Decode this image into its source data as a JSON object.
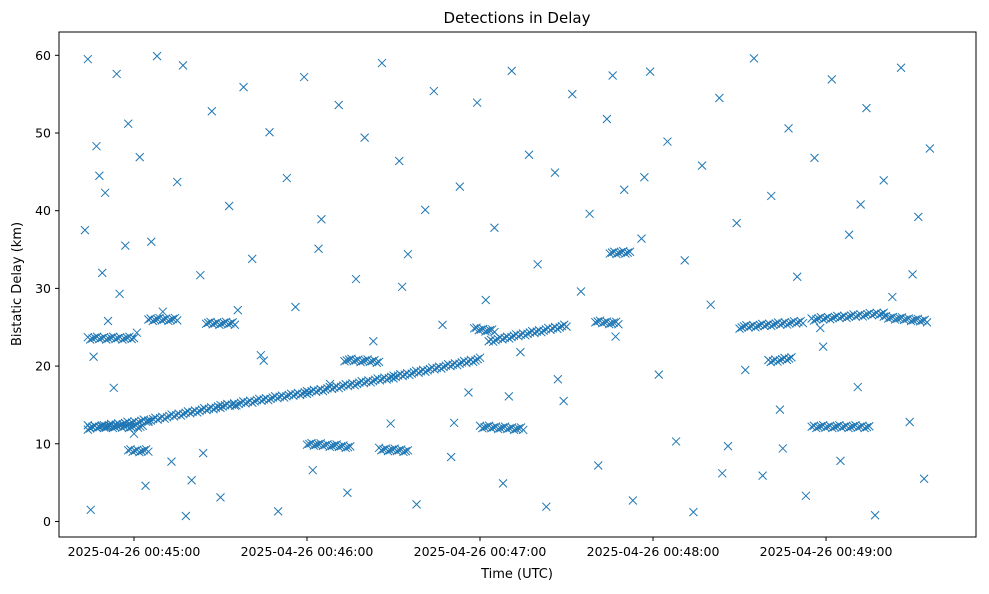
{
  "chart_data": {
    "type": "scatter",
    "title": "Detections in Delay",
    "xlabel": "Time (UTC)",
    "ylabel": "Bistatic Delay (km)",
    "marker": "x",
    "color": "#1f77b4",
    "grid": false,
    "x_range": [
      "2025-04-26 00:44:34",
      "2025-04-26 00:49:52"
    ],
    "x_ticks": [
      "2025-04-26 00:45:00",
      "2025-04-26 00:46:00",
      "2025-04-26 00:47:00",
      "2025-04-26 00:48:00",
      "2025-04-26 00:49:00"
    ],
    "ylim": [
      -2,
      63
    ],
    "y_ticks": [
      0,
      10,
      20,
      30,
      40,
      50,
      60
    ],
    "tracks": [
      {
        "x": [
          "2025-04-26 00:44:44",
          "2025-04-26 00:45:05",
          "2025-04-26 00:45:30",
          "2025-04-26 00:46:00",
          "2025-04-26 00:46:30",
          "2025-04-26 00:47:00"
        ],
        "y": [
          12.0,
          13.0,
          14.8,
          16.6,
          18.6,
          20.9
        ]
      },
      {
        "x": [
          "2025-04-26 00:44:44",
          "2025-04-26 00:45:03"
        ],
        "y": [
          12.2,
          12.2
        ]
      },
      {
        "x": [
          "2025-04-26 00:44:44",
          "2025-04-26 00:45:00"
        ],
        "y": [
          23.6,
          23.6
        ]
      },
      {
        "x": [
          "2025-04-26 00:44:58",
          "2025-04-26 00:45:05"
        ],
        "y": [
          9.1,
          9.1
        ]
      },
      {
        "x": [
          "2025-04-26 00:45:05",
          "2025-04-26 00:45:15"
        ],
        "y": [
          26.0,
          26.0
        ]
      },
      {
        "x": [
          "2025-04-26 00:45:25",
          "2025-04-26 00:45:35"
        ],
        "y": [
          25.5,
          25.5
        ]
      },
      {
        "x": [
          "2025-04-26 00:46:00",
          "2025-04-26 00:46:15"
        ],
        "y": [
          10.0,
          9.6
        ]
      },
      {
        "x": [
          "2025-04-26 00:46:13",
          "2025-04-26 00:46:25"
        ],
        "y": [
          20.8,
          20.6
        ]
      },
      {
        "x": [
          "2025-04-26 00:46:25",
          "2025-04-26 00:46:35"
        ],
        "y": [
          9.3,
          9.1
        ]
      },
      {
        "x": [
          "2025-04-26 00:47:00",
          "2025-04-26 00:47:15"
        ],
        "y": [
          12.2,
          11.9
        ]
      },
      {
        "x": [
          "2025-04-26 00:46:58",
          "2025-04-26 00:47:05"
        ],
        "y": [
          24.8,
          24.5
        ]
      },
      {
        "x": [
          "2025-04-26 00:47:03",
          "2025-04-26 00:47:30"
        ],
        "y": [
          23.2,
          25.2
        ]
      },
      {
        "x": [
          "2025-04-26 00:47:40",
          "2025-04-26 00:47:48"
        ],
        "y": [
          25.7,
          25.5
        ]
      },
      {
        "x": [
          "2025-04-26 00:47:45",
          "2025-04-26 00:47:52"
        ],
        "y": [
          34.6,
          34.6
        ]
      },
      {
        "x": [
          "2025-04-26 00:48:30",
          "2025-04-26 00:48:52"
        ],
        "y": [
          25.0,
          25.7
        ]
      },
      {
        "x": [
          "2025-04-26 00:48:40",
          "2025-04-26 00:48:48"
        ],
        "y": [
          20.6,
          21.0
        ]
      },
      {
        "x": [
          "2025-04-26 00:48:55",
          "2025-04-26 00:49:20"
        ],
        "y": [
          26.0,
          26.8
        ]
      },
      {
        "x": [
          "2025-04-26 00:49:20",
          "2025-04-26 00:49:35"
        ],
        "y": [
          26.3,
          25.8
        ]
      },
      {
        "x": [
          "2025-04-26 00:48:55",
          "2025-04-26 00:49:15"
        ],
        "y": [
          12.2,
          12.2
        ]
      }
    ],
    "scatter": {
      "x": [
        "2025-04-26 00:44:43",
        "2025-04-26 00:44:44",
        "2025-04-26 00:44:45",
        "2025-04-26 00:44:47",
        "2025-04-26 00:44:48",
        "2025-04-26 00:44:50",
        "2025-04-26 00:44:51",
        "2025-04-26 00:44:53",
        "2025-04-26 00:44:54",
        "2025-04-26 00:44:55",
        "2025-04-26 00:44:57",
        "2025-04-26 00:44:58",
        "2025-04-26 00:45:00",
        "2025-04-26 00:45:01",
        "2025-04-26 00:45:02",
        "2025-04-26 00:45:04",
        "2025-04-26 00:45:06",
        "2025-04-26 00:45:08",
        "2025-04-26 00:45:10",
        "2025-04-26 00:45:13",
        "2025-04-26 00:45:15",
        "2025-04-26 00:45:17",
        "2025-04-26 00:45:20",
        "2025-04-26 00:45:23",
        "2025-04-26 00:45:27",
        "2025-04-26 00:45:30",
        "2025-04-26 00:45:33",
        "2025-04-26 00:45:35",
        "2025-04-26 00:45:38",
        "2025-04-26 00:45:41",
        "2025-04-26 00:45:44",
        "2025-04-26 00:45:47",
        "2025-04-26 00:45:50",
        "2025-04-26 00:45:53",
        "2025-04-26 00:45:56",
        "2025-04-26 00:45:59",
        "2025-04-26 00:46:02",
        "2025-04-26 00:46:05",
        "2025-04-26 00:46:08",
        "2025-04-26 00:46:11",
        "2025-04-26 00:46:14",
        "2025-04-26 00:46:17",
        "2025-04-26 00:46:20",
        "2025-04-26 00:46:23",
        "2025-04-26 00:46:26",
        "2025-04-26 00:46:29",
        "2025-04-26 00:46:32",
        "2025-04-26 00:46:35",
        "2025-04-26 00:46:38",
        "2025-04-26 00:46:41",
        "2025-04-26 00:46:44",
        "2025-04-26 00:46:47",
        "2025-04-26 00:46:50",
        "2025-04-26 00:46:53",
        "2025-04-26 00:46:56",
        "2025-04-26 00:46:59",
        "2025-04-26 00:47:02",
        "2025-04-26 00:47:05",
        "2025-04-26 00:47:08",
        "2025-04-26 00:47:11",
        "2025-04-26 00:47:14",
        "2025-04-26 00:47:17",
        "2025-04-26 00:47:20",
        "2025-04-26 00:47:23",
        "2025-04-26 00:47:26",
        "2025-04-26 00:47:29",
        "2025-04-26 00:47:32",
        "2025-04-26 00:47:35",
        "2025-04-26 00:47:38",
        "2025-04-26 00:47:41",
        "2025-04-26 00:47:44",
        "2025-04-26 00:47:47",
        "2025-04-26 00:47:50",
        "2025-04-26 00:47:53",
        "2025-04-26 00:47:56",
        "2025-04-26 00:47:59",
        "2025-04-26 00:48:02",
        "2025-04-26 00:48:05",
        "2025-04-26 00:48:08",
        "2025-04-26 00:48:11",
        "2025-04-26 00:48:14",
        "2025-04-26 00:48:17",
        "2025-04-26 00:48:20",
        "2025-04-26 00:48:23",
        "2025-04-26 00:48:26",
        "2025-04-26 00:48:29",
        "2025-04-26 00:48:32",
        "2025-04-26 00:48:35",
        "2025-04-26 00:48:38",
        "2025-04-26 00:48:41",
        "2025-04-26 00:48:44",
        "2025-04-26 00:48:47",
        "2025-04-26 00:48:50",
        "2025-04-26 00:48:53",
        "2025-04-26 00:48:56",
        "2025-04-26 00:48:59",
        "2025-04-26 00:49:02",
        "2025-04-26 00:49:05",
        "2025-04-26 00:49:08",
        "2025-04-26 00:49:11",
        "2025-04-26 00:49:14",
        "2025-04-26 00:49:17",
        "2025-04-26 00:49:20",
        "2025-04-26 00:49:23",
        "2025-04-26 00:49:26",
        "2025-04-26 00:49:29",
        "2025-04-26 00:49:32",
        "2025-04-26 00:49:34",
        "2025-04-26 00:49:36",
        "2025-04-26 00:44:49",
        "2025-04-26 00:45:18",
        "2025-04-26 00:45:45",
        "2025-04-26 00:46:33",
        "2025-04-26 00:47:27",
        "2025-04-26 00:48:24",
        "2025-04-26 00:49:12",
        "2025-04-26 00:45:36",
        "2025-04-26 00:46:51",
        "2025-04-26 00:47:57",
        "2025-04-26 00:48:45",
        "2025-04-26 00:49:30",
        "2025-04-26 00:44:46",
        "2025-04-26 00:46:04",
        "2025-04-26 00:47:10",
        "2025-04-26 00:48:58",
        "2025-04-26 00:45:24",
        "2025-04-26 00:47:46"
      ],
      "y": [
        37.5,
        59.5,
        1.5,
        48.3,
        44.5,
        42.3,
        25.8,
        17.2,
        57.6,
        29.3,
        35.5,
        51.2,
        11.3,
        24.3,
        46.9,
        4.6,
        36.0,
        59.9,
        27.0,
        7.7,
        43.7,
        58.7,
        5.3,
        31.7,
        52.8,
        3.1,
        40.6,
        14.9,
        55.9,
        33.8,
        21.4,
        50.1,
        1.3,
        44.2,
        27.6,
        57.2,
        6.6,
        38.9,
        17.7,
        53.6,
        3.7,
        31.2,
        49.4,
        23.2,
        59.0,
        12.6,
        46.4,
        34.4,
        2.2,
        40.1,
        55.4,
        25.3,
        8.3,
        43.1,
        16.6,
        53.9,
        28.5,
        37.8,
        4.9,
        58.0,
        21.8,
        47.2,
        33.1,
        1.9,
        44.9,
        15.5,
        55.0,
        29.6,
        39.6,
        7.2,
        51.8,
        23.8,
        42.7,
        2.7,
        36.4,
        57.9,
        18.9,
        48.9,
        10.3,
        33.6,
        1.2,
        45.8,
        27.9,
        54.5,
        9.7,
        38.4,
        19.5,
        59.6,
        5.9,
        41.9,
        14.4,
        50.6,
        31.5,
        3.3,
        46.8,
        22.5,
        56.9,
        7.8,
        36.9,
        17.3,
        53.2,
        0.8,
        43.9,
        28.9,
        58.4,
        12.8,
        39.2,
        5.5,
        48.0,
        32.0,
        0.7,
        20.7,
        30.2,
        18.3,
        6.2,
        40.8,
        27.2,
        12.7,
        44.3,
        9.4,
        31.8,
        21.2,
        35.1,
        16.1,
        24.9,
        8.8,
        57.4
      ]
    }
  }
}
